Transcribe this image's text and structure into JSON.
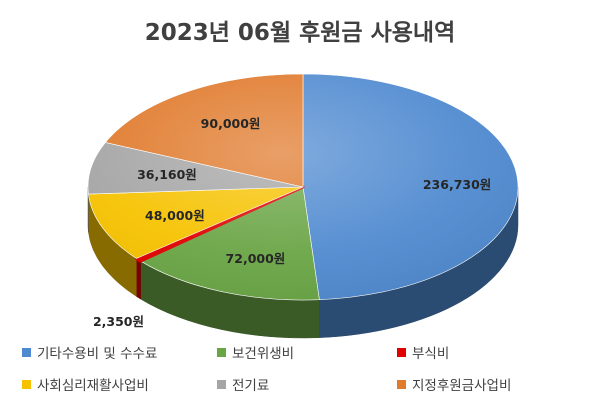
{
  "chart_data": {
    "type": "pie",
    "title": "2023년 06월 후원금 사용내역",
    "slices": [
      {
        "name": "기타수용비 및 수수료",
        "value": 236730,
        "label": "236,730원",
        "color": "#4f8ad0"
      },
      {
        "name": "보건위생비",
        "value": 72000,
        "label": "72,000원",
        "color": "#6aa545"
      },
      {
        "name": "부식비",
        "value": 2350,
        "label": "2,350원",
        "color": "#e00000"
      },
      {
        "name": "사회심리재활사업비",
        "value": 48000,
        "label": "48,000원",
        "color": "#f6c200"
      },
      {
        "name": "전기료",
        "value": 36160,
        "label": "36,160원",
        "color": "#a5a5a5"
      },
      {
        "name": "지정후원금사업비",
        "value": 90000,
        "label": "90,000원",
        "color": "#e07a2c"
      }
    ],
    "legend_position": "bottom"
  }
}
